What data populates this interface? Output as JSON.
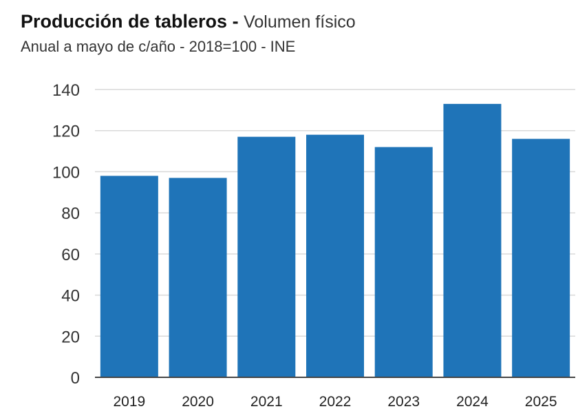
{
  "header": {
    "title": "Producción de tableros",
    "separator": " - ",
    "subtitle_inline": "Volumen físico",
    "subtitle": "Anual a mayo de c/año - 2018=100 - INE"
  },
  "colors": {
    "bar": "#1f74b8",
    "grid": "#d9d9d9",
    "axis": "#444444"
  },
  "chart_data": {
    "type": "bar",
    "categories": [
      "2019",
      "2020",
      "2021",
      "2022",
      "2023",
      "2024",
      "2025"
    ],
    "values": [
      98,
      97,
      117,
      118,
      112,
      133,
      116
    ],
    "title": "Producción de tableros",
    "subtitle": "Anual a mayo de c/año - 2018=100 - INE",
    "xlabel": "",
    "ylabel": "",
    "ylim": [
      0,
      140
    ],
    "yticks": [
      0,
      20,
      40,
      60,
      80,
      100,
      120,
      140
    ],
    "grid": true,
    "legend": "none"
  }
}
